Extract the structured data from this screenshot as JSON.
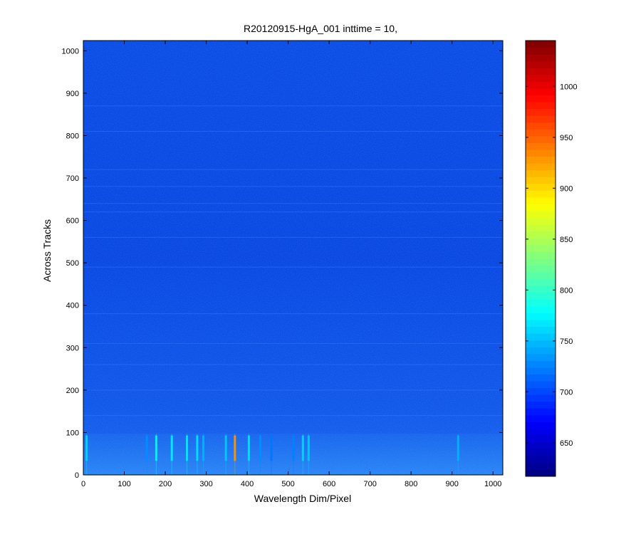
{
  "chart_data": {
    "type": "heatmap",
    "title": "R20120915-HgA_001 inttime = 10,",
    "xlabel": "Wavelength Dim/Pixel",
    "ylabel": "Across Tracks",
    "xlim": [
      0,
      1024
    ],
    "ylim": [
      0,
      1024
    ],
    "x_ticks": [
      0,
      100,
      200,
      300,
      400,
      500,
      600,
      700,
      800,
      900,
      1000
    ],
    "y_ticks": [
      0,
      100,
      200,
      300,
      400,
      500,
      600,
      700,
      800,
      900,
      1000
    ],
    "colormap": "jet",
    "clim": [
      617,
      1045
    ],
    "colorbar_ticks": [
      650,
      700,
      750,
      800,
      850,
      900,
      950,
      1000
    ],
    "background_level": 680,
    "band_rows": [
      0,
      97
    ],
    "band_level": 700,
    "emission_lines": [
      {
        "x": 8,
        "value": 760
      },
      {
        "x": 155,
        "value": 730
      },
      {
        "x": 178,
        "value": 775
      },
      {
        "x": 216,
        "value": 770
      },
      {
        "x": 253,
        "value": 770
      },
      {
        "x": 278,
        "value": 765
      },
      {
        "x": 293,
        "value": 745
      },
      {
        "x": 348,
        "value": 755
      },
      {
        "x": 370,
        "value": 930
      },
      {
        "x": 404,
        "value": 765
      },
      {
        "x": 432,
        "value": 730
      },
      {
        "x": 459,
        "value": 720
      },
      {
        "x": 513,
        "value": 725
      },
      {
        "x": 536,
        "value": 760
      },
      {
        "x": 550,
        "value": 755
      },
      {
        "x": 915,
        "value": 745
      }
    ],
    "stripe_rows": [
      140,
      200,
      260,
      310,
      380,
      490,
      560,
      620,
      640,
      680,
      720,
      810,
      870
    ]
  }
}
